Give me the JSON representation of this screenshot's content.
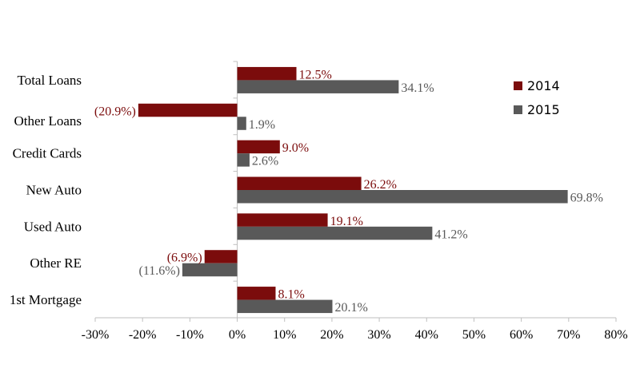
{
  "chart_data": {
    "type": "bar",
    "orientation": "horizontal",
    "categories": [
      "Total Loans",
      "Other Loans",
      "Credit Cards",
      "New Auto",
      "Used Auto",
      "Other RE",
      "1st Mortgage"
    ],
    "series": [
      {
        "name": "2014",
        "color": "#7b0c0c",
        "label_color": "#7b0c0c",
        "values": [
          12.5,
          -20.9,
          9.0,
          26.2,
          19.1,
          -6.9,
          8.1
        ],
        "labels": [
          "12.5%",
          "(20.9%)",
          "9.0%",
          "26.2%",
          "19.1%",
          "(6.9%)",
          "8.1%"
        ]
      },
      {
        "name": "2015",
        "color": "#595959",
        "label_color": "#595959",
        "values": [
          34.1,
          1.9,
          2.6,
          69.8,
          41.2,
          -11.6,
          20.1
        ],
        "labels": [
          "34.1%",
          "1.9%",
          "2.6%",
          "69.8%",
          "41.2%",
          "(11.6%)",
          "20.1%"
        ]
      }
    ],
    "xlim": [
      -30,
      80
    ],
    "xticks": [
      -30,
      -20,
      -10,
      0,
      10,
      20,
      30,
      40,
      50,
      60,
      70,
      80
    ],
    "xtick_labels": [
      "-30%",
      "-20%",
      "-10%",
      "0%",
      "10%",
      "20%",
      "30%",
      "40%",
      "50%",
      "60%",
      "70%",
      "80%"
    ],
    "title": "",
    "xlabel": "",
    "ylabel": "",
    "grid": false,
    "legend_position": "right"
  }
}
